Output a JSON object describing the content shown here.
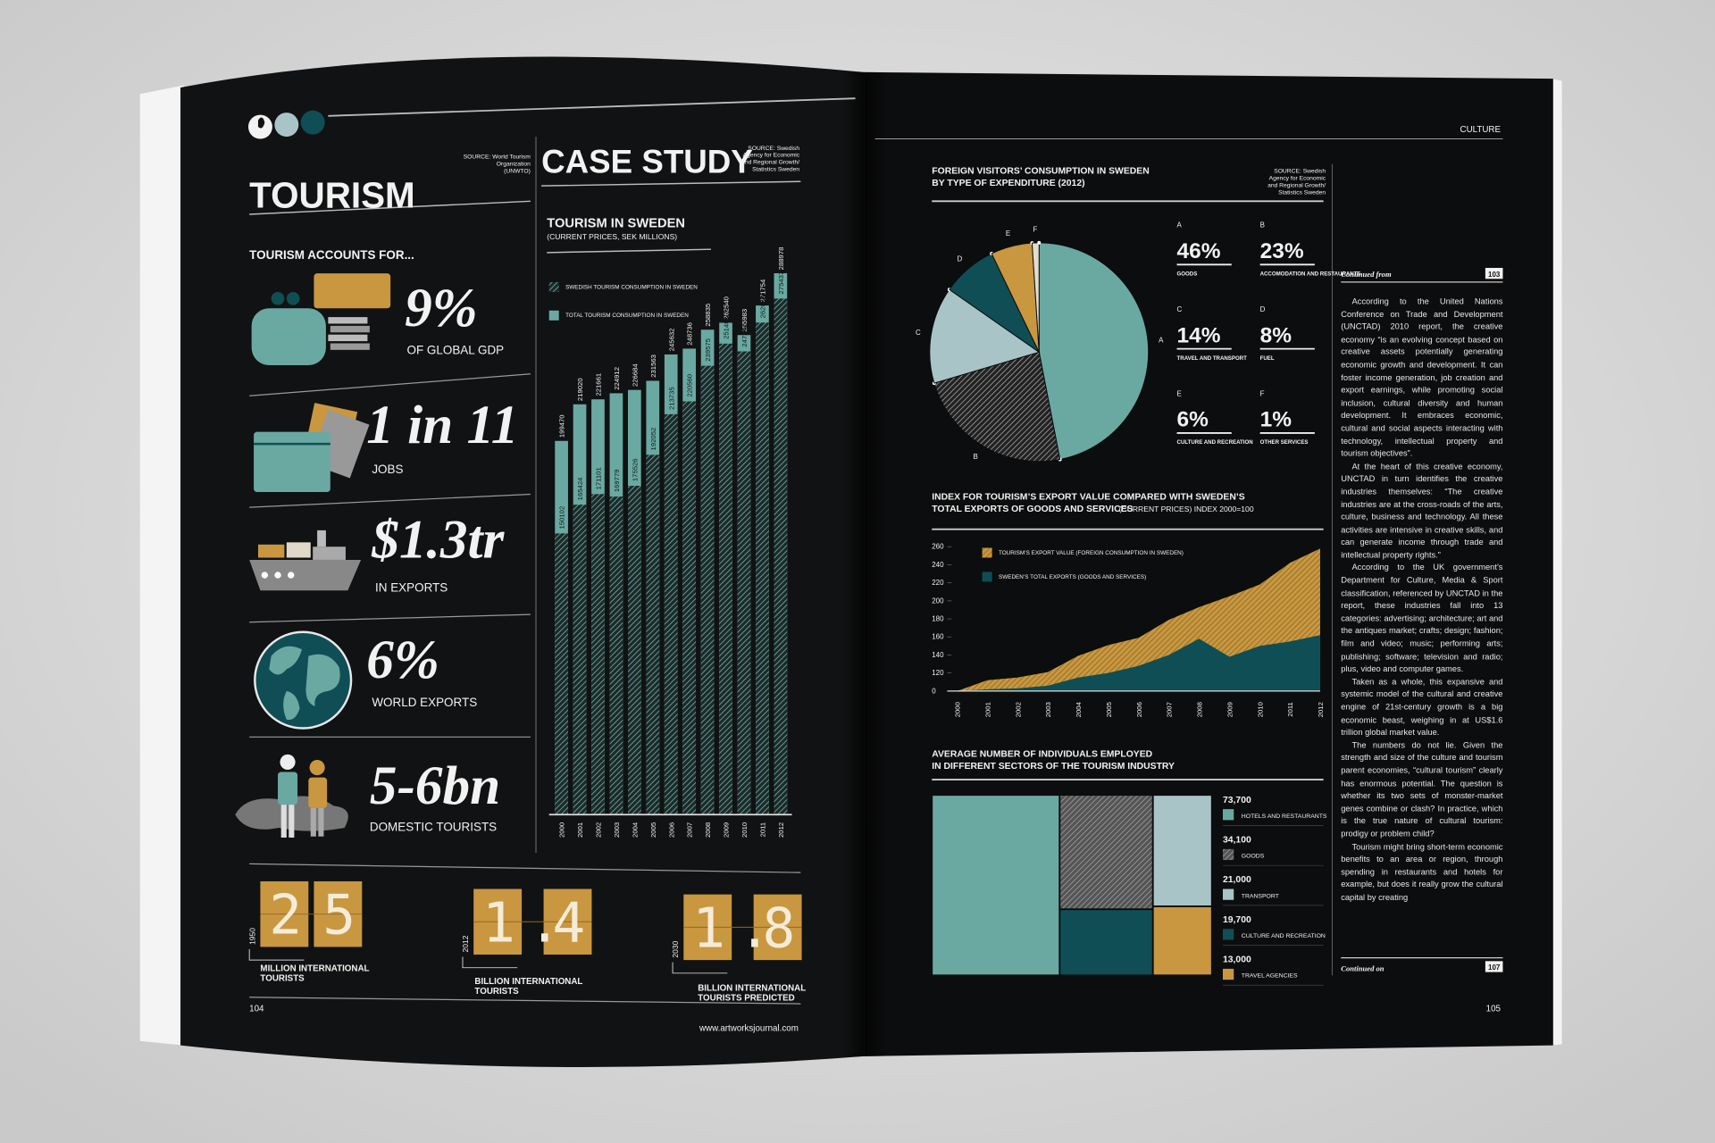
{
  "left_page": {
    "section_title": "TOURISM",
    "source": [
      "SOURCE: World Tourism",
      "Organization",
      "(UNWTO)"
    ],
    "intro": "TOURISM ACCOUNTS FOR...",
    "stats": [
      {
        "figure": "9%",
        "caption": "OF GLOBAL GDP"
      },
      {
        "figure": "1 in 11",
        "caption": "JOBS"
      },
      {
        "figure": "$1.3tr",
        "caption": "IN EXPORTS"
      },
      {
        "figure": "6%",
        "caption": "WORLD EXPORTS"
      },
      {
        "figure": "5-6bn",
        "caption": "DOMESTIC TOURISTS"
      }
    ],
    "milestones": [
      {
        "year": "1950",
        "figure": "25",
        "caption": [
          "MILLION INTERNATIONAL",
          "TOURISTS"
        ]
      },
      {
        "year": "2012",
        "figure": "1.4",
        "caption": [
          "BILLION INTERNATIONAL",
          "TOURISTS"
        ]
      },
      {
        "year": "2030",
        "figure": "1.8",
        "caption": [
          "BILLION INTERNATIONAL",
          "TOURISTS PREDICTED"
        ]
      }
    ],
    "page_number": "104",
    "url": "www.artworksjournal.com"
  },
  "case_study": {
    "title": "CASE STUDY",
    "source": [
      "SOURCE: Swedish",
      "Agency for Economic",
      "and Regional Growth/",
      "Statistics Sweden"
    ]
  },
  "right_page": {
    "section": "CULTURE",
    "page_number": "105",
    "pie_source": [
      "SOURCE: Swedish",
      "Agency for Economic",
      "and Regional Growth/",
      "Statistics Sweden"
    ],
    "sidebar": {
      "continued_from": "Continued from",
      "from_page": "103",
      "paragraphs": [
        "According to the United Nations Conference on Trade and Development (UNCTAD) 2010 report, the creative economy “is an evolving concept based on creative assets potentially generating economic growth and development. It can foster income generation, job creation and export earnings, while promoting social inclusion, cultural diversity and human development. It embraces economic, cultural and social aspects interacting with technology, intellectual property and tourism objectives”.",
        "At the heart of this creative economy, UNCTAD in turn identifies the creative industries themselves: “The creative industries are at the cross-roads of the arts, culture, business and technology. All these activities are intensive in creative skills, and can generate income through trade and intellectual property rights.”",
        "According to the UK government’s Department for Culture, Media & Sport classification, referenced by UNCTAD in the report, these industries fall into 13 categories: advertising; architecture; art and the antiques market; crafts; design; fashion; film and video; music; performing arts; publishing; software; television and radio; plus, video and computer games.",
        "Taken as a whole, this expansive and systemic model of the cultural and creative engine of 21st-century growth is a big economic beast, weighing in at US$1.6 trillion global market value.",
        "The numbers do not lie. Given the strength and size of the culture and tourism parent economies, “cultural tourism” clearly has enormous potential. The question is whether its two sets of monster-market genes combine or clash? In practice, which is the true nature of cultural tourism: prodigy or problem child?",
        "Tourism might bring short-term economic benefits to an area or region, through spending in restaurants and hotels for example, but does it really grow the cultural capital by creating"
      ],
      "continued_on": "Continued on",
      "on_page": "107"
    }
  },
  "chart_data": [
    {
      "type": "bar",
      "title": "TOURISM IN SWEDEN",
      "subtitle": "(CURRENT PRICES, SEK MILLIONS)",
      "categories": [
        "2000",
        "2001",
        "2002",
        "2003",
        "2004",
        "2005",
        "2006",
        "2007",
        "2008",
        "2009",
        "2010",
        "2011",
        "2012"
      ],
      "series": [
        {
          "name": "SWEDISH TOURISM CONSUMPTION IN SWEDEN",
          "color": "#6aa9a2",
          "hatched": true,
          "values": [
            150102,
            165424,
            171101,
            169779,
            175526,
            192052,
            213735,
            220560,
            239575,
            251401,
            247271,
            262623,
            275437
          ]
        },
        {
          "name": "TOTAL TOURISM CONSUMPTION IN SWEDEN",
          "color": "#6aa9a2",
          "hatched": false,
          "values": [
            199470,
            219020,
            221661,
            224912,
            226684,
            231563,
            245632,
            248736,
            258835,
            262540,
            255983,
            271754,
            288978
          ]
        }
      ],
      "ylim": [
        0,
        300000
      ]
    },
    {
      "type": "pie",
      "title": [
        "FOREIGN VISITORS’ CONSUMPTION IN SWEDEN",
        "BY TYPE OF EXPENDITURE (2012)"
      ],
      "letters": [
        "A",
        "B",
        "C",
        "D",
        "E",
        "F"
      ],
      "categories": [
        "GOODS",
        "ACCOMODATION AND RESTAURANTS",
        "TRAVEL AND TRANSPORT",
        "FUEL",
        "CULTURE AND RECREATION",
        "OTHER SERVICES"
      ],
      "values": [
        46,
        23,
        14,
        8,
        6,
        1
      ],
      "value_labels": [
        "46%",
        "23%",
        "14%",
        "8%",
        "6%",
        "1%"
      ],
      "colors": [
        "#6aa9a2",
        "#9a9a9a",
        "#a9c4c6",
        "#0f4e55",
        "#c9973f",
        "#e3ddd0"
      ],
      "hatched": [
        false,
        true,
        false,
        false,
        false,
        false
      ]
    },
    {
      "type": "area",
      "title": [
        "INDEX FOR TOURISM’S EXPORT VALUE COMPARED WITH SWEDEN’S",
        "TOTAL EXPORTS OF GOODS AND SERVICES"
      ],
      "subtitle": "(CURRENT PRICES) INDEX 2000=100",
      "categories": [
        "2000",
        "2001",
        "2002",
        "2003",
        "2004",
        "2005",
        "2006",
        "2007",
        "2008",
        "2009",
        "2010",
        "2011",
        "2012"
      ],
      "series": [
        {
          "name": "TOURISM’S EXPORT VALUE (FOREIGN CONSUMPTION IN SWEDEN)",
          "color": "#c9973f",
          "hatched": true,
          "values": [
            100,
            112,
            115,
            121,
            139,
            151,
            159,
            179,
            193,
            205,
            218,
            242,
            258
          ]
        },
        {
          "name": "SWEDEN’S TOTAL EXPORTS (GOODS AND SERVICES)",
          "color": "#0f4e55",
          "hatched": false,
          "values": [
            100,
            102,
            103,
            106,
            115,
            120,
            128,
            140,
            158,
            138,
            150,
            155,
            162
          ]
        }
      ],
      "ylim": [
        100,
        260
      ],
      "yticks": [
        {
          "value": 100,
          "label": "0"
        },
        120,
        140,
        160,
        180,
        200,
        220,
        240,
        260
      ],
      "grid": false
    },
    {
      "type": "treemap",
      "title": [
        "AVERAGE NUMBER OF INDIVIDUALS EMPLOYED",
        "IN DIFFERENT SECTORS OF THE TOURISM INDUSTRY"
      ],
      "categories": [
        "HOTELS AND RESTAURANTS",
        "GOODS",
        "TRANSPORT",
        "CULTURE AND RECREATION",
        "TRAVEL AGENCIES"
      ],
      "values": [
        73700,
        34100,
        21000,
        19700,
        13000
      ],
      "value_labels": [
        "73,700",
        "34,100",
        "21,000",
        "19,700",
        "13,000"
      ],
      "colors": [
        "#6aa9a2",
        "#7a7a7a",
        "#a9c4c6",
        "#0f4e55",
        "#c9973f"
      ],
      "hatched": [
        false,
        true,
        false,
        false,
        false
      ]
    }
  ]
}
